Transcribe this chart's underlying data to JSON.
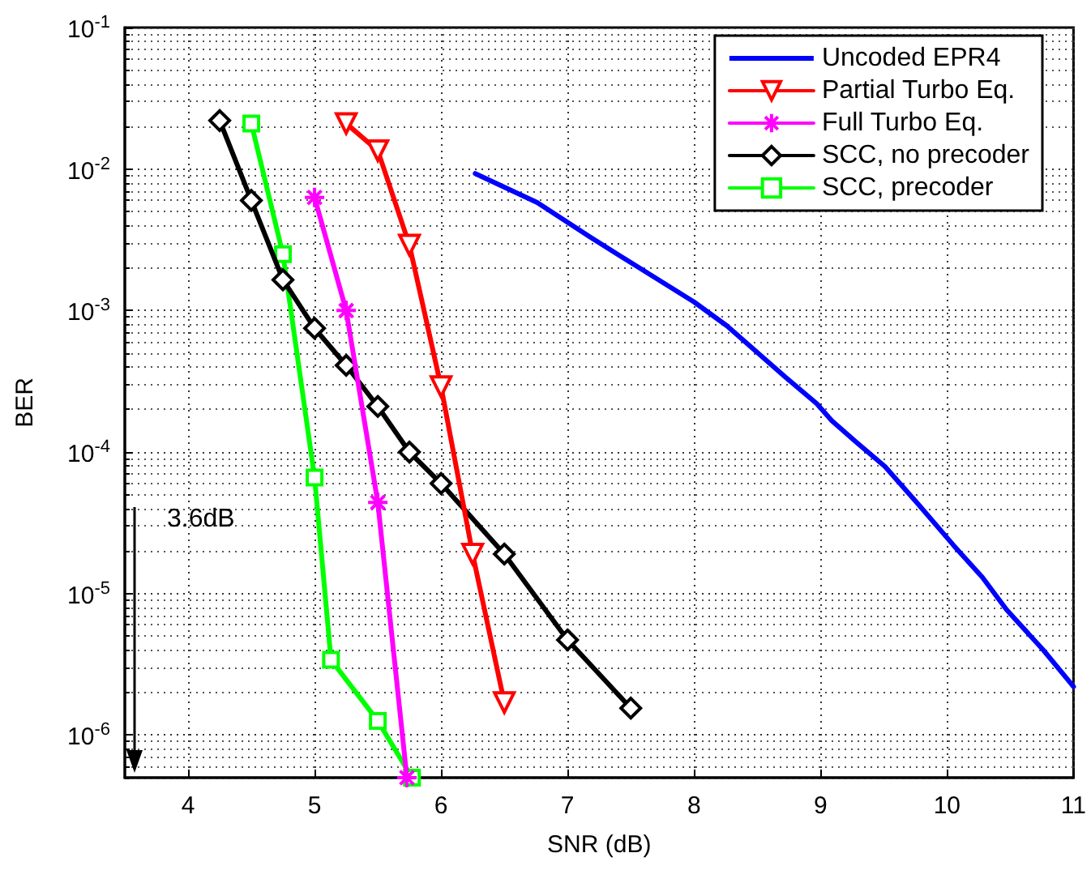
{
  "chart_data": {
    "type": "line",
    "xlabel": "SNR (dB)",
    "ylabel": "BER",
    "log": "y",
    "xlim": [
      3.5,
      11
    ],
    "xticks": [
      4,
      5,
      6,
      7,
      8,
      9,
      10,
      11
    ],
    "ylim": [
      5e-07,
      0.1
    ],
    "yticks": [
      {
        "value": 1e-06,
        "label": "10$^{-6}$"
      },
      {
        "value": 1e-05,
        "label": "10$^{-5}$"
      },
      {
        "value": 0.0001,
        "label": "10$^{-4}$"
      },
      {
        "value": 0.001,
        "label": "10$^{-3}$"
      },
      {
        "value": 0.01,
        "label": "10$^{-2}$"
      },
      {
        "value": 0.1,
        "label": "10$^{-1}$"
      }
    ],
    "grid": true,
    "legend": "top right",
    "line_style": "solid",
    "annotations": [
      "3.6dB"
    ],
    "series": [
      {
        "name": "Uncoded EPR4",
        "color": "#0000ff",
        "marker": "none",
        "x": [
          6.27,
          6.76,
          7.18,
          7.53,
          8.0,
          8.26,
          8.72,
          8.97,
          9.09,
          9.28,
          9.51,
          9.77,
          10.05,
          10.28,
          10.47,
          10.76,
          11.0
        ],
        "values": [
          0.0093,
          0.0058,
          0.0033,
          0.0021,
          0.00115,
          0.00078,
          0.00034,
          0.00022,
          0.000166,
          0.000118,
          7.9e-05,
          4.3e-05,
          2.2e-05,
          1.3e-05,
          7.7e-06,
          4e-06,
          2.2e-06
        ]
      },
      {
        "name": "Partial Turbo Eq.",
        "color": "#ff0000",
        "marker": "triangle",
        "x": [
          5.25,
          5.5,
          5.75,
          6.0,
          6.25,
          6.5
        ],
        "values": [
          0.021,
          0.0135,
          0.0029,
          0.00029,
          1.9e-05,
          1.7e-06
        ]
      },
      {
        "name": "Full Turbo Eq.",
        "color": "#ff00ff",
        "marker": "cross",
        "x": [
          5.0,
          5.25,
          5.5,
          5.73
        ],
        "values": [
          0.0063,
          0.001,
          4.4e-05,
          5e-07
        ]
      },
      {
        "name": "SCC, no precoder",
        "color": "#000000",
        "marker": "diamond",
        "x": [
          4.25,
          4.5,
          4.75,
          5.0,
          5.25,
          5.5,
          5.75,
          6.0,
          6.5,
          7.0,
          7.5
        ],
        "values": [
          0.022,
          0.006,
          0.00165,
          0.00075,
          0.00041,
          0.00021,
          0.0001,
          6e-05,
          1.9e-05,
          4.7e-06,
          1.55e-06
        ]
      },
      {
        "name": "SCC, precoder",
        "color": "#00ff00",
        "marker": "square",
        "x": [
          4.5,
          4.75,
          5.0,
          5.13,
          5.5,
          5.77
        ],
        "values": [
          0.021,
          0.0025,
          6.6e-05,
          3.4e-06,
          1.26e-06,
          5e-07
        ]
      }
    ]
  }
}
